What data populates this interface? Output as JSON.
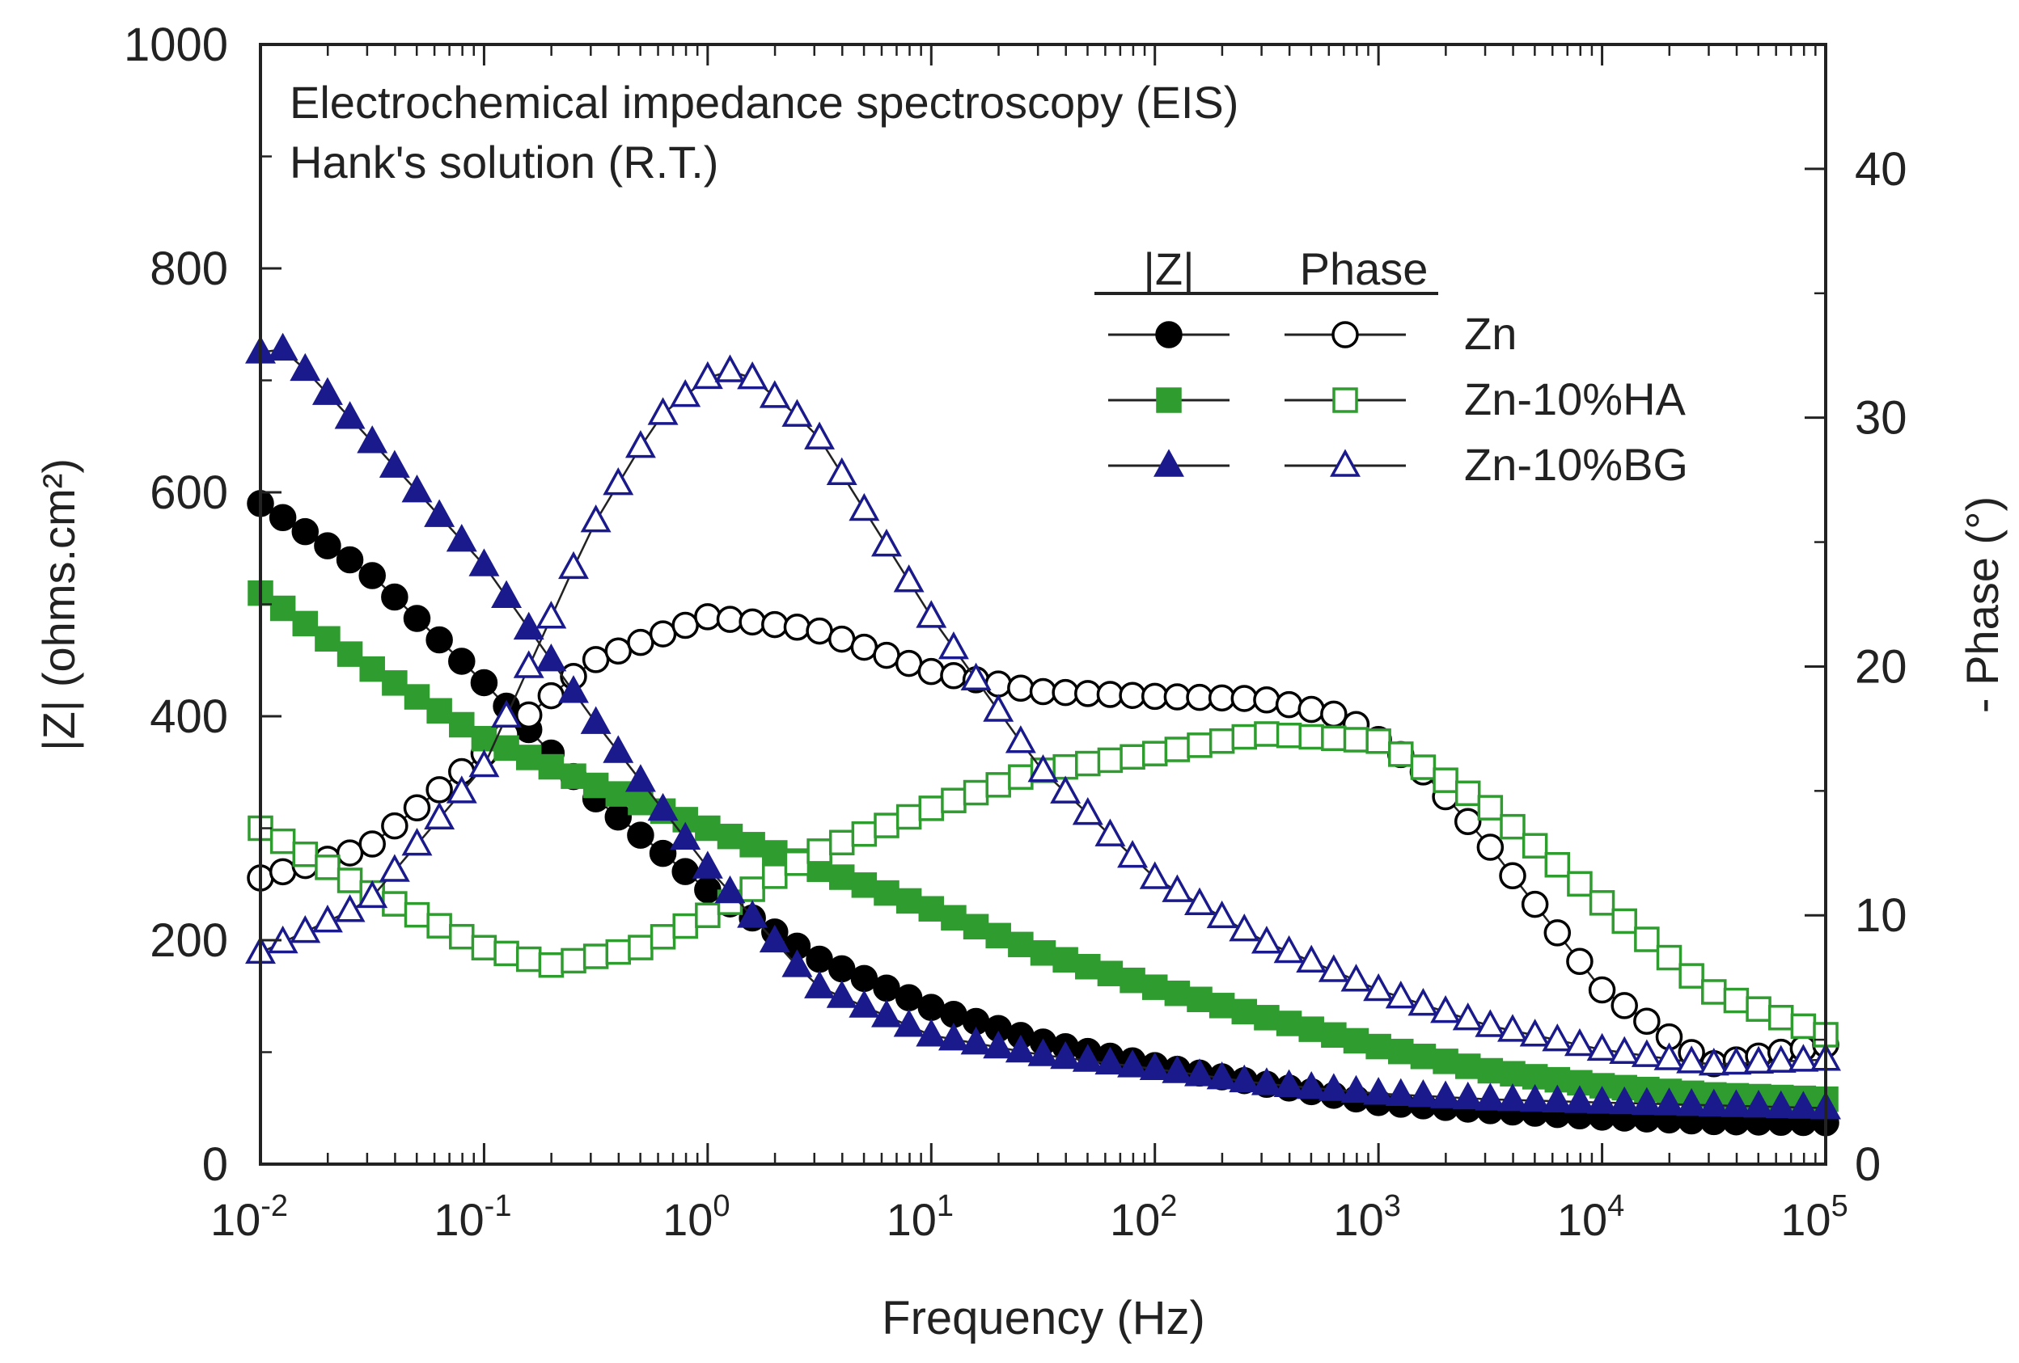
{
  "chart_data": {
    "type": "scatter",
    "title_lines": [
      "Electrochemical impedance spectroscopy (EIS)",
      "Hank's solution (R.T.)"
    ],
    "xlabel": "Frequency (Hz)",
    "ylabel_left": "|Z| (ohms.cm²)",
    "ylabel_right": "- Phase (°)",
    "x_scale": "log",
    "xlim": [
      0.01,
      100000
    ],
    "ylim_left": [
      0,
      1000
    ],
    "ylim_right": [
      0,
      45
    ],
    "x_tick_labels": [
      {
        "base": "10",
        "exp": "-2"
      },
      {
        "base": "10",
        "exp": "-1"
      },
      {
        "base": "10",
        "exp": "0"
      },
      {
        "base": "10",
        "exp": "1"
      },
      {
        "base": "10",
        "exp": "2"
      },
      {
        "base": "10",
        "exp": "3"
      },
      {
        "base": "10",
        "exp": "4"
      },
      {
        "base": "10",
        "exp": "5"
      }
    ],
    "y_left_ticks": [
      0,
      200,
      400,
      600,
      800,
      1000
    ],
    "y_right_ticks": [
      0,
      10,
      20,
      30,
      40
    ],
    "legend": {
      "header_z": "|Z|",
      "header_phase": "Phase",
      "entries": [
        "Zn",
        "Zn-10%HA",
        "Zn-10%BG"
      ]
    },
    "series": [
      {
        "name": "Zn",
        "color": "#000000",
        "marker": "circle",
        "z_points": [
          [
            0.01,
            590
          ],
          [
            0.03,
            530
          ],
          [
            0.1,
            430
          ],
          [
            0.3,
            330
          ],
          [
            1,
            245
          ],
          [
            3,
            185
          ],
          [
            10,
            140
          ],
          [
            30,
            110
          ],
          [
            100,
            88
          ],
          [
            300,
            72
          ],
          [
            1000,
            55
          ],
          [
            3000,
            48
          ],
          [
            10000,
            42
          ],
          [
            30000,
            38
          ],
          [
            100000,
            37
          ]
        ],
        "phase_points": [
          [
            0.01,
            11.5
          ],
          [
            0.03,
            12.7
          ],
          [
            0.1,
            16.5
          ],
          [
            0.3,
            20.2
          ],
          [
            1,
            22
          ],
          [
            3,
            21.5
          ],
          [
            10,
            19.8
          ],
          [
            30,
            19
          ],
          [
            100,
            18.8
          ],
          [
            300,
            18.7
          ],
          [
            700,
            18
          ],
          [
            1500,
            16
          ],
          [
            3000,
            13
          ],
          [
            10000,
            7
          ],
          [
            30000,
            4
          ],
          [
            100000,
            4.8
          ]
        ]
      },
      {
        "name": "Zn-10%HA",
        "color": "#2e9c2e",
        "marker": "square",
        "z_points": [
          [
            0.01,
            510
          ],
          [
            0.03,
            445
          ],
          [
            0.1,
            380
          ],
          [
            0.3,
            340
          ],
          [
            1,
            300
          ],
          [
            3,
            265
          ],
          [
            10,
            228
          ],
          [
            30,
            190
          ],
          [
            100,
            158
          ],
          [
            300,
            132
          ],
          [
            1000,
            105
          ],
          [
            3000,
            84
          ],
          [
            10000,
            70
          ],
          [
            30000,
            62
          ],
          [
            100000,
            58
          ]
        ],
        "phase_points": [
          [
            0.01,
            13.5
          ],
          [
            0.03,
            11
          ],
          [
            0.1,
            8.7
          ],
          [
            0.2,
            8
          ],
          [
            0.5,
            8.7
          ],
          [
            1,
            10
          ],
          [
            3,
            12.5
          ],
          [
            10,
            14.3
          ],
          [
            30,
            15.8
          ],
          [
            100,
            16.5
          ],
          [
            300,
            17.3
          ],
          [
            1000,
            17
          ],
          [
            3000,
            14.5
          ],
          [
            10000,
            10.5
          ],
          [
            30000,
            7
          ],
          [
            100000,
            5.2
          ]
        ]
      },
      {
        "name": "Zn-10%BG",
        "color": "#1a1a8c",
        "marker": "triangle",
        "z_points": [
          [
            0.01,
            725
          ],
          [
            0.013,
            728
          ],
          [
            0.03,
            650
          ],
          [
            0.1,
            535
          ],
          [
            0.3,
            400
          ],
          [
            1,
            265
          ],
          [
            3,
            160
          ],
          [
            10,
            115
          ],
          [
            30,
            98
          ],
          [
            100,
            85
          ],
          [
            300,
            72
          ],
          [
            1000,
            63
          ],
          [
            3000,
            58
          ],
          [
            10000,
            55
          ],
          [
            100000,
            50
          ]
        ],
        "phase_points": [
          [
            0.01,
            8.5
          ],
          [
            0.03,
            10.5
          ],
          [
            0.1,
            16
          ],
          [
            0.3,
            25.5
          ],
          [
            0.6,
            30
          ],
          [
            1,
            31.6
          ],
          [
            1.4,
            32
          ],
          [
            3,
            29.5
          ],
          [
            10,
            22
          ],
          [
            30,
            16
          ],
          [
            100,
            11.5
          ],
          [
            300,
            9
          ],
          [
            1000,
            7
          ],
          [
            3000,
            5.6
          ],
          [
            10000,
            4.6
          ],
          [
            30000,
            4
          ],
          [
            100000,
            4.2
          ]
        ]
      }
    ]
  }
}
